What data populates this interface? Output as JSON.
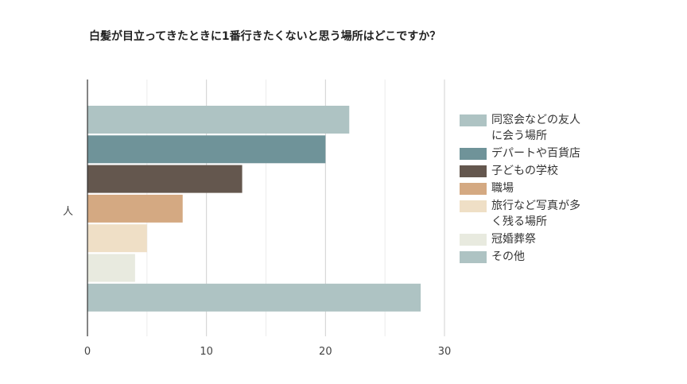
{
  "chart_data": {
    "type": "bar",
    "orientation": "horizontal",
    "title": "白髪が目立ってきたときに1番行きたくないと思う場所はどこですか？",
    "categories": [
      "人"
    ],
    "xlim": [
      0,
      30
    ],
    "x_ticks": [
      "0",
      "10",
      "20",
      "30"
    ],
    "grid": true,
    "legend_position": "right",
    "series": [
      {
        "name": "同窓会などの友人に会う場所",
        "values": [
          22
        ],
        "color": "#aec3c3"
      },
      {
        "name": "デパートや百貨店",
        "values": [
          20
        ],
        "color": "#6f9399"
      },
      {
        "name": "子どもの学校",
        "values": [
          13
        ],
        "color": "#64574e"
      },
      {
        "name": "職場",
        "values": [
          8
        ],
        "color": "#d4a982"
      },
      {
        "name": "旅行など写真が多く残る場所",
        "values": [
          5
        ],
        "color": "#efdfc6"
      },
      {
        "name": "冠婚葬祭",
        "values": [
          4
        ],
        "color": "#e8eadf"
      },
      {
        "name": "その他",
        "values": [
          28
        ],
        "color": "#aec3c3"
      }
    ]
  }
}
